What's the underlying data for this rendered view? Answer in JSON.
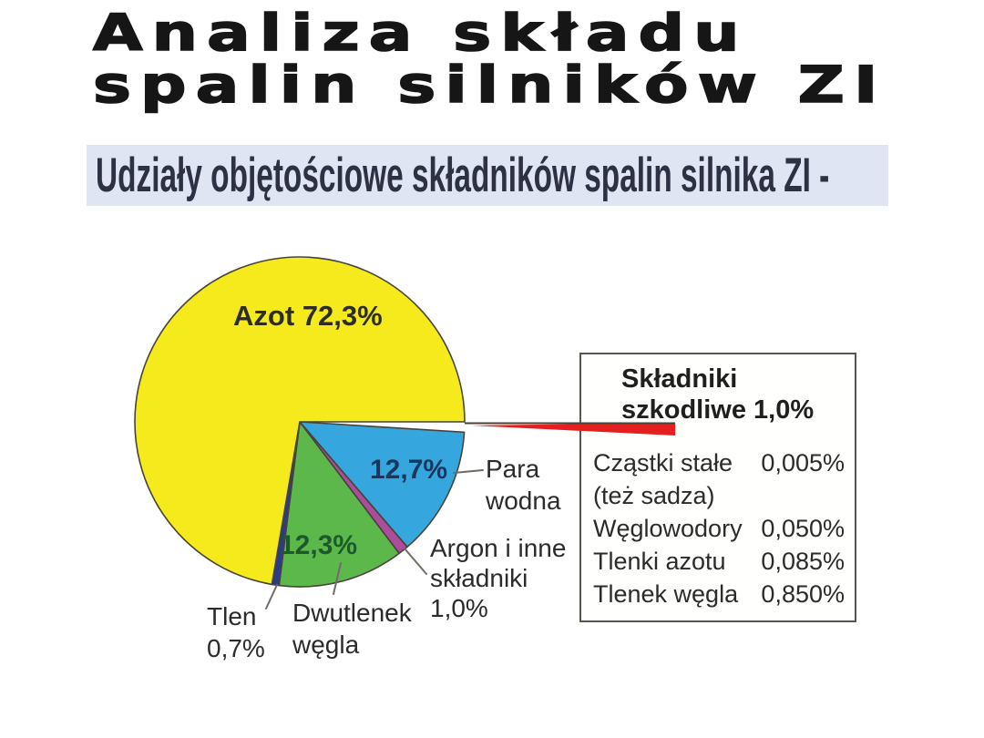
{
  "slide": {
    "title_line1": "Analiza składu",
    "title_line2": "spalin silników ZI",
    "subtitle": "Udziały objętościowe składników spalin silnika ZI -"
  },
  "colors": {
    "background": "#ffffff",
    "subtitle_bar": "#dfe5f3",
    "pie_outline": "#474437",
    "leader_line": "#6e6e66",
    "box_border": "#57554d"
  },
  "chart_data": {
    "type": "pie",
    "title": "Udziały objętościowe składników spalin silnika ZI",
    "unit": "%",
    "start_angle_deg": 0,
    "direction": "clockwise",
    "slices": [
      {
        "key": "szkodliwe",
        "name": "Składniki szkodliwe",
        "value": 1.0,
        "color": "#e3201f",
        "exploded": true
      },
      {
        "key": "para-wodna",
        "name": "Para wodna",
        "value": 12.7,
        "color": "#36a7de",
        "exploded": false
      },
      {
        "key": "argon",
        "name": "Argon i inne składniki",
        "value": 1.0,
        "color": "#ac4c9d",
        "exploded": false
      },
      {
        "key": "dwutlenek-wegla",
        "name": "Dwutlenek węgla",
        "value": 12.3,
        "color": "#5cb84a",
        "exploded": false
      },
      {
        "key": "tlen",
        "name": "Tlen",
        "value": 0.7,
        "color": "#2c3a8c",
        "exploded": false
      },
      {
        "key": "azot",
        "name": "Azot",
        "value": 72.3,
        "color": "#f5eb1c",
        "exploded": false
      }
    ],
    "labels": {
      "azot": "Azot 72,3%",
      "para_pct": "12,7%",
      "para": [
        "Para",
        "wodna"
      ],
      "co2_pct": "12,3%",
      "co2": [
        "Dwutlenek",
        "węgla"
      ],
      "tlen": [
        "Tlen",
        "0,7%"
      ],
      "argon": [
        "Argon i inne",
        "składniki",
        "1,0%"
      ]
    },
    "harmful_box": {
      "title_line1": "Składniki",
      "title_line2": "szkodliwe 1,0%",
      "rows": [
        {
          "label": "Cząstki stałe",
          "label2": "(też sadza)",
          "value": "0,005%"
        },
        {
          "label": "Węglowodory",
          "value": "0,050%"
        },
        {
          "label": "Tlenki azotu",
          "value": "0,085%"
        },
        {
          "label": "Tlenek węgla",
          "value": "0,850%"
        }
      ]
    }
  }
}
